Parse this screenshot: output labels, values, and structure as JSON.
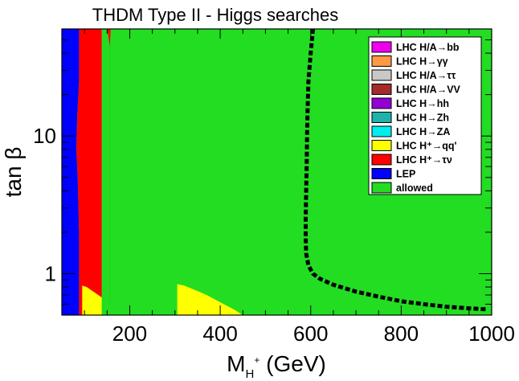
{
  "chart_data": {
    "type": "heatmap",
    "title": "THDM Type II - Higgs searches",
    "xlabel": {
      "base": "M",
      "sub": "H",
      "sup": "+",
      "unit": " (GeV)"
    },
    "ylabel": "tan β",
    "xlim": [
      50,
      1000
    ],
    "ylim": [
      0.5,
      60
    ],
    "yscale": "log",
    "x_ticks": [
      {
        "value": 200,
        "label": "200"
      },
      {
        "value": 400,
        "label": "400"
      },
      {
        "value": 600,
        "label": "600"
      },
      {
        "value": 800,
        "label": "800"
      },
      {
        "value": 1000,
        "label": "1000"
      }
    ],
    "y_ticks": [
      {
        "value": 1,
        "label": "1"
      },
      {
        "value": 10,
        "label": "10"
      }
    ],
    "legend_position": "top-right",
    "legend": [
      {
        "label": "LHC H/A→bb",
        "color": "#ee00ee"
      },
      {
        "label": "LHC H→γγ",
        "color": "#ff9944"
      },
      {
        "label": "LHC H/A→ττ",
        "color": "#c8c8c8"
      },
      {
        "label": "LHC H/A→VV",
        "color": "#a52a2a"
      },
      {
        "label": "LHC H→hh",
        "color": "#9400d3"
      },
      {
        "label": "LHC H→Zh",
        "color": "#20b2aa"
      },
      {
        "label": "LHC H→ZA",
        "color": "#00eeee"
      },
      {
        "label": "LHC H⁺→qq'",
        "color": "#ffff00"
      },
      {
        "label": "LHC H⁺→τν",
        "color": "#ff0000"
      },
      {
        "label": "LEP",
        "color": "#0000ff"
      },
      {
        "label": "allowed",
        "color": "#22dd22"
      }
    ],
    "regions": [
      {
        "name": "LEP",
        "color": "#0000ff",
        "polygon": [
          [
            50,
            0.5
          ],
          [
            88,
            0.5
          ],
          [
            88,
            2
          ],
          [
            85,
            5
          ],
          [
            82,
            8
          ],
          [
            84,
            14
          ],
          [
            88,
            25
          ],
          [
            88,
            60
          ],
          [
            50,
            60
          ]
        ]
      },
      {
        "name": "LHC H⁺→τν",
        "color": "#ff0000",
        "polygon": [
          [
            88,
            0.5
          ],
          [
            155,
            0.5
          ],
          [
            155,
            60
          ],
          [
            88,
            60
          ],
          [
            88,
            25
          ],
          [
            84,
            14
          ],
          [
            82,
            8
          ],
          [
            85,
            5
          ],
          [
            88,
            2
          ]
        ]
      },
      {
        "name": "LHC H⁺→qq' (low mass)",
        "color": "#ffff00",
        "polygon": [
          [
            95,
            0.5
          ],
          [
            155,
            0.5
          ],
          [
            155,
            0.62
          ],
          [
            145,
            0.65
          ],
          [
            125,
            0.72
          ],
          [
            105,
            0.8
          ],
          [
            95,
            0.82
          ]
        ]
      },
      {
        "name": "LHC H⁺→qq' (mid mass)",
        "color": "#ffff00",
        "polygon": [
          [
            305,
            0.5
          ],
          [
            450,
            0.5
          ],
          [
            430,
            0.55
          ],
          [
            400,
            0.62
          ],
          [
            370,
            0.7
          ],
          [
            345,
            0.76
          ],
          [
            320,
            0.82
          ],
          [
            305,
            0.84
          ]
        ]
      },
      {
        "name": "allowed (strip)",
        "color": "#22dd22",
        "polygon": [
          [
            138,
            0.5
          ],
          [
            155,
            0.5
          ],
          [
            155,
            60
          ],
          [
            138,
            60
          ]
        ]
      },
      {
        "name": "LHC H⁺→τν (top spike)",
        "color": "#ff0000",
        "polygon": [
          [
            150,
            60
          ],
          [
            158,
            60
          ],
          [
            156,
            45
          ]
        ]
      }
    ],
    "series": [
      {
        "style": "dashed",
        "color": "#000000",
        "points": [
          [
            605,
            60
          ],
          [
            600,
            40
          ],
          [
            595,
            25
          ],
          [
            593,
            15
          ],
          [
            592,
            10
          ],
          [
            591,
            6
          ],
          [
            590,
            4
          ],
          [
            589,
            2.5
          ],
          [
            589,
            1.8
          ],
          [
            590,
            1.4
          ],
          [
            595,
            1.15
          ],
          [
            605,
            1.0
          ],
          [
            620,
            0.92
          ],
          [
            650,
            0.83
          ],
          [
            700,
            0.74
          ],
          [
            750,
            0.68
          ],
          [
            800,
            0.63
          ],
          [
            850,
            0.6
          ],
          [
            900,
            0.575
          ],
          [
            950,
            0.56
          ],
          [
            990,
            0.55
          ]
        ]
      }
    ]
  }
}
